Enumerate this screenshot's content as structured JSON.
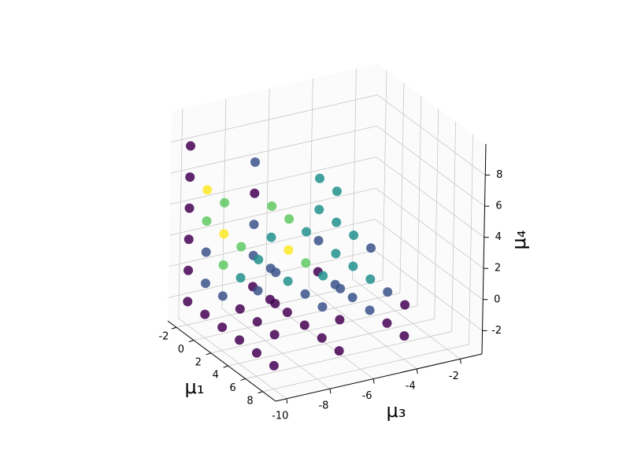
{
  "chart_data": {
    "type": "scatter3d",
    "x_label": "μ₁",
    "y_label": "μ₃",
    "z_label": "μ₄",
    "xlim": [
      -3,
      9.5
    ],
    "ylim": [
      -10.5,
      -1
    ],
    "zlim": [
      -3.5,
      10
    ],
    "xticks": [
      -2,
      0,
      2,
      4,
      6,
      8
    ],
    "yticks": [
      -10,
      -8,
      -6,
      -4,
      -2
    ],
    "zticks": [
      -2,
      0,
      2,
      4,
      6,
      8
    ],
    "grid": true,
    "x": [
      -2,
      -2,
      -2,
      -2,
      -2,
      -2,
      -2,
      -2,
      -2,
      -2,
      -2,
      -2,
      -2,
      -2,
      -2,
      0,
      0,
      0,
      0,
      0,
      0,
      0,
      0,
      0,
      0,
      0,
      0,
      0,
      2,
      2,
      2,
      2,
      2,
      2,
      2,
      2,
      2,
      2,
      2,
      2,
      4,
      4,
      4,
      4,
      4,
      4,
      4,
      4,
      4,
      4,
      4,
      6,
      6,
      6,
      6,
      6,
      6,
      6,
      6,
      6,
      8,
      8,
      8,
      8,
      8,
      8,
      8,
      8,
      8
    ],
    "y": [
      -10,
      -10,
      -10,
      -10,
      -10,
      -10,
      -7,
      -7,
      -7,
      -7,
      -7,
      -4,
      -4,
      -4,
      -4,
      -10,
      -10,
      -10,
      -10,
      -10,
      -7,
      -7,
      -7,
      -7,
      -4,
      -4,
      -4,
      -4,
      -10,
      -10,
      -10,
      -10,
      -10,
      -7,
      -7,
      -7,
      -7,
      -4,
      -4,
      -4,
      -10,
      -10,
      -10,
      -10,
      -7,
      -7,
      -7,
      -7,
      -4,
      -4,
      -4,
      -10,
      -10,
      -10,
      -10,
      -7,
      -7,
      -7,
      -4,
      -4,
      -10,
      -10,
      -10,
      -10,
      -7,
      -7,
      -7,
      -4,
      -4
    ],
    "z": [
      -2,
      0,
      2,
      4,
      6,
      8,
      -2,
      0,
      2,
      4,
      6,
      -2,
      0,
      2,
      4,
      -2,
      0,
      2,
      4,
      6,
      -2,
      0,
      2,
      4,
      -2,
      0,
      2,
      4,
      -2,
      0,
      2,
      4,
      6,
      -2,
      0,
      2,
      4,
      -2,
      0,
      2,
      -2,
      0,
      2,
      4,
      -2,
      0,
      2,
      4,
      -2,
      0,
      2,
      -2,
      0,
      2,
      4,
      -2,
      0,
      2,
      -2,
      0,
      -2,
      0,
      2,
      4,
      -2,
      0,
      2,
      -2,
      0
    ],
    "colors": [
      "#440154",
      "#440154",
      "#440154",
      "#440154",
      "#440154",
      "#440154",
      "#440154",
      "#3b528b",
      "#3b528b",
      "#440154",
      "#3b528b",
      "#440154",
      "#3b528b",
      "#21918c",
      "#21918c",
      "#440154",
      "#3b528b",
      "#3b528b",
      "#5ec962",
      "#fde725",
      "#440154",
      "#3b528b",
      "#21918c",
      "#5ec962",
      "#3b528b",
      "#21918c",
      "#21918c",
      "#21918c",
      "#440154",
      "#3b528b",
      "#5ec962",
      "#fde725",
      "#5ec962",
      "#440154",
      "#21918c",
      "#fde725",
      "#5ec962",
      "#3b528b",
      "#21918c",
      "#21918c",
      "#440154",
      "#440154",
      "#21918c",
      "#5ec962",
      "#440154",
      "#3b528b",
      "#5ec962",
      "#21918c",
      "#3b528b",
      "#21918c",
      "#3b528b",
      "#440154",
      "#440154",
      "#3b528b",
      "#21918c",
      "#440154",
      "#3b528b",
      "#21918c",
      "#440154",
      "#3b528b",
      "#440154",
      "#440154",
      "#440154",
      "#3b528b",
      "#440154",
      "#440154",
      "#3b528b",
      "#440154",
      "#440154"
    ]
  }
}
